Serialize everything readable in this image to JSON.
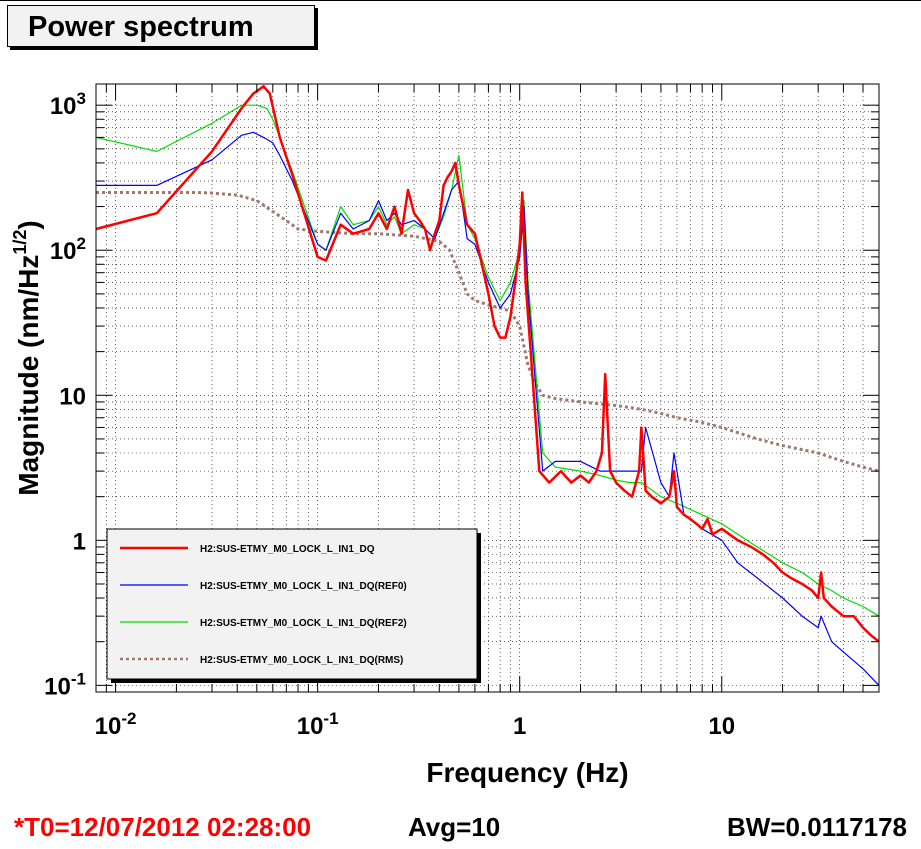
{
  "title": "Power spectrum",
  "chart_data": {
    "type": "line",
    "xlabel": "Frequency (Hz)",
    "ylabel_main": "Magnitude (nm/Hz",
    "ylabel_sup": "1/2",
    "ylabel_close": ")",
    "x_scale": "log",
    "y_scale": "log",
    "xlim": [
      0.008,
      60
    ],
    "ylim": [
      0.09,
      1400
    ],
    "grid": true,
    "legend_position": "bottom-left",
    "x_ticks": [
      {
        "value": 0.01,
        "base": "10",
        "exp": "-2"
      },
      {
        "value": 0.1,
        "base": "10",
        "exp": "-1"
      },
      {
        "value": 1,
        "base": "1",
        "exp": ""
      },
      {
        "value": 10,
        "base": "10",
        "exp": ""
      }
    ],
    "y_ticks": [
      {
        "value": 0.1,
        "base": "10",
        "exp": "-1"
      },
      {
        "value": 1,
        "base": "1",
        "exp": ""
      },
      {
        "value": 10,
        "base": "10",
        "exp": ""
      },
      {
        "value": 100,
        "base": "10",
        "exp": "2"
      },
      {
        "value": 1000,
        "base": "10",
        "exp": "3"
      }
    ],
    "series": [
      {
        "name": "H2:SUS-ETMY_M0_LOCK_L_IN1_DQ",
        "color": "#ff0000",
        "width": 2.5,
        "dash": "",
        "x": [
          0.008,
          0.016,
          0.03,
          0.042,
          0.048,
          0.054,
          0.058,
          0.065,
          0.075,
          0.1,
          0.11,
          0.13,
          0.15,
          0.18,
          0.2,
          0.22,
          0.24,
          0.26,
          0.28,
          0.3,
          0.32,
          0.34,
          0.36,
          0.38,
          0.4,
          0.42,
          0.44,
          0.46,
          0.48,
          0.5,
          0.55,
          0.6,
          0.65,
          0.7,
          0.75,
          0.8,
          0.85,
          0.9,
          0.95,
          1.0,
          1.03,
          1.07,
          1.15,
          1.25,
          1.4,
          1.6,
          1.8,
          2.0,
          2.2,
          2.4,
          2.55,
          2.65,
          2.8,
          3.0,
          3.3,
          3.6,
          3.9,
          4.0,
          4.2,
          4.5,
          5.0,
          5.5,
          5.8,
          6.0,
          6.5,
          7.0,
          7.5,
          8.0,
          8.5,
          9.0,
          10,
          12,
          14,
          16,
          18,
          20,
          22,
          25,
          28,
          30,
          31,
          32,
          35,
          40,
          45,
          50,
          55,
          60
        ],
        "y": [
          140,
          180,
          480,
          950,
          1200,
          1350,
          1200,
          600,
          330,
          90,
          85,
          150,
          130,
          140,
          180,
          140,
          200,
          130,
          260,
          180,
          160,
          140,
          100,
          130,
          160,
          280,
          320,
          350,
          400,
          280,
          150,
          130,
          80,
          50,
          30,
          25,
          25,
          35,
          60,
          110,
          250,
          60,
          15,
          3,
          2.5,
          3,
          2.5,
          2.8,
          2.5,
          3,
          4,
          14,
          3,
          2.5,
          2.2,
          2,
          3,
          6,
          2.2,
          2,
          1.8,
          2,
          3,
          1.7,
          1.5,
          1.4,
          1.3,
          1.2,
          1.4,
          1.1,
          1.2,
          1,
          0.9,
          0.8,
          0.7,
          0.6,
          0.55,
          0.5,
          0.45,
          0.4,
          0.6,
          0.4,
          0.35,
          0.3,
          0.3,
          0.25,
          0.22,
          0.2
        ]
      },
      {
        "name": "H2:SUS-ETMY_M0_LOCK_L_IN1_DQ(REF0)",
        "color": "#0000ff",
        "width": 1.2,
        "dash": "",
        "x": [
          0.008,
          0.016,
          0.03,
          0.042,
          0.048,
          0.054,
          0.06,
          0.065,
          0.075,
          0.1,
          0.11,
          0.13,
          0.15,
          0.18,
          0.2,
          0.22,
          0.24,
          0.26,
          0.3,
          0.34,
          0.38,
          0.42,
          0.46,
          0.5,
          0.55,
          0.6,
          0.7,
          0.8,
          0.9,
          1.0,
          1.05,
          1.1,
          1.3,
          1.5,
          2.0,
          2.5,
          3.0,
          3.5,
          4.0,
          4.2,
          5.0,
          5.5,
          5.8,
          6.5,
          8.0,
          10,
          12,
          15,
          20,
          25,
          30,
          31,
          35,
          40,
          50,
          60
        ],
        "y": [
          280,
          280,
          420,
          620,
          650,
          600,
          550,
          450,
          300,
          110,
          100,
          180,
          140,
          160,
          220,
          160,
          180,
          150,
          160,
          140,
          120,
          180,
          260,
          300,
          120,
          110,
          60,
          40,
          50,
          90,
          200,
          50,
          3,
          3.5,
          3.5,
          3,
          3,
          3,
          3,
          6,
          2.5,
          2,
          4,
          1.5,
          1.2,
          1,
          0.7,
          0.55,
          0.4,
          0.3,
          0.25,
          0.3,
          0.2,
          0.17,
          0.13,
          0.1
        ]
      },
      {
        "name": "H2:SUS-ETMY_M0_LOCK_L_IN1_DQ(REF2)",
        "color": "#00dd00",
        "width": 1.2,
        "dash": "",
        "x": [
          0.008,
          0.016,
          0.03,
          0.042,
          0.05,
          0.056,
          0.06,
          0.065,
          0.075,
          0.1,
          0.11,
          0.13,
          0.15,
          0.18,
          0.2,
          0.22,
          0.24,
          0.26,
          0.3,
          0.34,
          0.38,
          0.42,
          0.46,
          0.5,
          0.55,
          0.6,
          0.7,
          0.8,
          0.9,
          1.0,
          1.05,
          1.1,
          1.3,
          1.5,
          2.0,
          2.5,
          3.0,
          3.5,
          4.0,
          5.0,
          6.0,
          8.0,
          10,
          12,
          15,
          20,
          25,
          30,
          35,
          40,
          50,
          60
        ],
        "y": [
          600,
          480,
          750,
          1000,
          1000,
          950,
          800,
          600,
          350,
          110,
          100,
          200,
          150,
          160,
          200,
          150,
          170,
          130,
          150,
          140,
          120,
          170,
          260,
          450,
          150,
          120,
          65,
          45,
          60,
          100,
          220,
          60,
          4,
          3.2,
          3,
          2.8,
          2.6,
          2.5,
          2.5,
          2,
          1.8,
          1.5,
          1.3,
          1.1,
          0.9,
          0.7,
          0.6,
          0.5,
          0.45,
          0.4,
          0.35,
          0.3
        ]
      },
      {
        "name": "H2:SUS-ETMY_M0_LOCK_L_IN1_DQ(RMS)",
        "color": "#a0786e",
        "width": 3,
        "dash": "3,3",
        "x": [
          0.008,
          0.015,
          0.02,
          0.025,
          0.03,
          0.04,
          0.05,
          0.06,
          0.07,
          0.08,
          0.1,
          0.15,
          0.2,
          0.3,
          0.4,
          0.45,
          0.5,
          0.55,
          0.6,
          0.7,
          0.8,
          0.9,
          1.0,
          1.1,
          1.2,
          1.3,
          1.5,
          2.0,
          3.0,
          4.0,
          5.0,
          6.0,
          8.0,
          10,
          15,
          20,
          30,
          40,
          50,
          60
        ],
        "y": [
          250,
          250,
          250,
          250,
          248,
          240,
          220,
          185,
          160,
          140,
          135,
          130,
          130,
          125,
          115,
          100,
          70,
          50,
          45,
          42,
          40,
          38,
          30,
          16,
          12,
          10,
          9.5,
          9,
          8.5,
          8,
          7.5,
          7,
          6.5,
          6,
          5,
          4.5,
          4,
          3.5,
          3.2,
          3
        ]
      }
    ]
  },
  "status": {
    "t0": "*T0=12/07/2012 02:28:00",
    "avg": "Avg=10",
    "bw": "BW=0.0117178"
  }
}
